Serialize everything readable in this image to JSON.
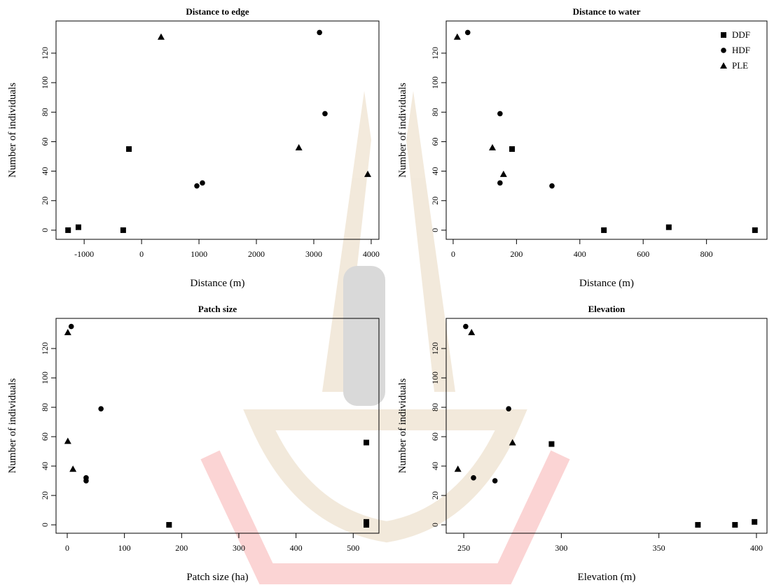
{
  "chart_data": [
    {
      "type": "scatter",
      "title": "Distance to edge",
      "x_label": "Distance (m)",
      "y_label": "Number of individuals",
      "xlim": [
        -1490,
        4135
      ],
      "ylim": [
        -6.2,
        141.8
      ],
      "xticks": [
        -1000,
        0,
        1000,
        2000,
        3000,
        4000
      ],
      "yticks": [
        0,
        20,
        40,
        60,
        80,
        100,
        120
      ],
      "series": [
        {
          "marker": "square",
          "color": "#000000",
          "x": [
            -1280,
            -1100,
            -320,
            -220
          ],
          "values": [
            0,
            2,
            0,
            55
          ]
        },
        {
          "marker": "circle",
          "color": "#000000",
          "x": [
            3100,
            3195,
            963,
            1060
          ],
          "values": [
            134,
            79,
            30,
            32
          ]
        },
        {
          "marker": "triangle",
          "color": "#000000",
          "x": [
            340,
            2740,
            3940
          ],
          "values": [
            131,
            56,
            38
          ]
        }
      ]
    },
    {
      "type": "scatter",
      "title": "Distance to water",
      "x_label": "Distance (m)",
      "y_label": "Number of individuals",
      "xlim": [
        -22,
        991
      ],
      "ylim": [
        -6.2,
        141.8
      ],
      "xticks": [
        0,
        200,
        400,
        600,
        800
      ],
      "yticks": [
        0,
        20,
        40,
        60,
        80,
        100,
        120
      ],
      "legend": "top-right",
      "series": [
        {
          "name": "DDF",
          "marker": "square",
          "color": "#000000",
          "x": [
            476,
            681,
            953,
            186
          ],
          "values": [
            0,
            2,
            0,
            55
          ]
        },
        {
          "name": "HDF",
          "marker": "circle",
          "color": "#000000",
          "x": [
            46,
            148,
            148,
            312
          ],
          "values": [
            134,
            79,
            32,
            30
          ]
        },
        {
          "name": "PLE",
          "marker": "triangle",
          "color": "#000000",
          "x": [
            13,
            124,
            159
          ],
          "values": [
            131,
            56,
            38
          ]
        }
      ]
    },
    {
      "type": "scatter",
      "title": "Patch size",
      "x_label": "Patch size (ha)",
      "y_label": "Number of individuals",
      "xlim": [
        -19.6,
        545
      ],
      "ylim": [
        -5.7,
        140.5
      ],
      "xticks": [
        0,
        100,
        200,
        300,
        400,
        500
      ],
      "yticks": [
        0,
        20,
        40,
        60,
        80,
        100,
        120
      ],
      "series": [
        {
          "marker": "square",
          "color": "#000000",
          "x": [
            178,
            523,
            523,
            523
          ],
          "values": [
            0,
            56,
            2,
            0
          ]
        },
        {
          "marker": "circle",
          "color": "#000000",
          "x": [
            7,
            59,
            33,
            33
          ],
          "values": [
            135,
            79,
            32,
            30
          ]
        },
        {
          "marker": "triangle",
          "color": "#000000",
          "x": [
            1,
            1,
            10
          ],
          "values": [
            131,
            57,
            38
          ]
        }
      ]
    },
    {
      "type": "scatter",
      "title": "Elevation",
      "x_label": "Elevation (m)",
      "y_label": "Number of individuals",
      "xlim": [
        241,
        405.4
      ],
      "ylim": [
        -5.7,
        140.5
      ],
      "xticks": [
        250,
        300,
        350,
        400
      ],
      "yticks": [
        0,
        20,
        40,
        60,
        80,
        100,
        120
      ],
      "series": [
        {
          "marker": "square",
          "color": "#000000",
          "x": [
            370,
            389,
            399,
            295
          ],
          "values": [
            0,
            0,
            2,
            55
          ]
        },
        {
          "marker": "circle",
          "color": "#000000",
          "x": [
            251,
            273,
            255,
            266
          ],
          "values": [
            135,
            79,
            32,
            30
          ]
        },
        {
          "marker": "triangle",
          "color": "#000000",
          "x": [
            254,
            275,
            247
          ],
          "values": [
            131,
            56,
            38
          ]
        }
      ]
    }
  ]
}
